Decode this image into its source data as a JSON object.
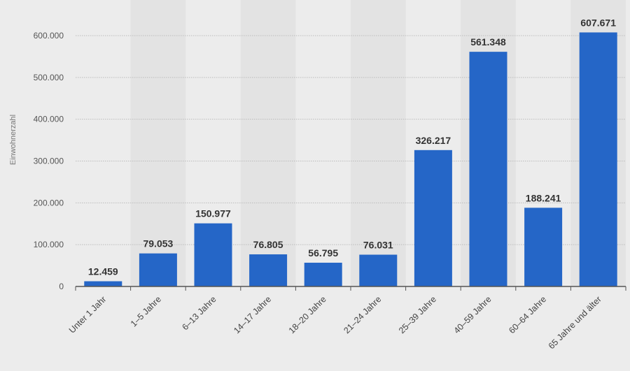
{
  "chart_data": {
    "type": "bar",
    "categories": [
      "Unter 1 Jahr",
      "1–5 Jahre",
      "6–13 Jahre",
      "14–17 Jahre",
      "18–20 Jahre",
      "21–24 Jahre",
      "25–39 Jahre",
      "40–59 Jahre",
      "60–64 Jahre",
      "65 Jahre und älter"
    ],
    "values": [
      12459,
      79053,
      150977,
      76805,
      56795,
      76031,
      326217,
      561348,
      188241,
      607671
    ],
    "value_labels": [
      "12.459",
      "79.053",
      "150.977",
      "76.805",
      "56.795",
      "76.031",
      "326.217",
      "561.348",
      "188.241",
      "607.671"
    ],
    "ylabel": "Einwohnerzahl",
    "yticks": [
      0,
      100000,
      200000,
      300000,
      400000,
      500000,
      600000
    ],
    "ytick_labels": [
      "0",
      "100.000",
      "200.000",
      "300.000",
      "400.000",
      "500.000",
      "600.000"
    ],
    "ylim": [
      0,
      600000
    ],
    "grid": true,
    "colors": {
      "bar": "#2566c7",
      "background": "#ececec",
      "band": "#e3e3e3",
      "grid": "#bcbcbc",
      "axis": "#555555"
    }
  }
}
